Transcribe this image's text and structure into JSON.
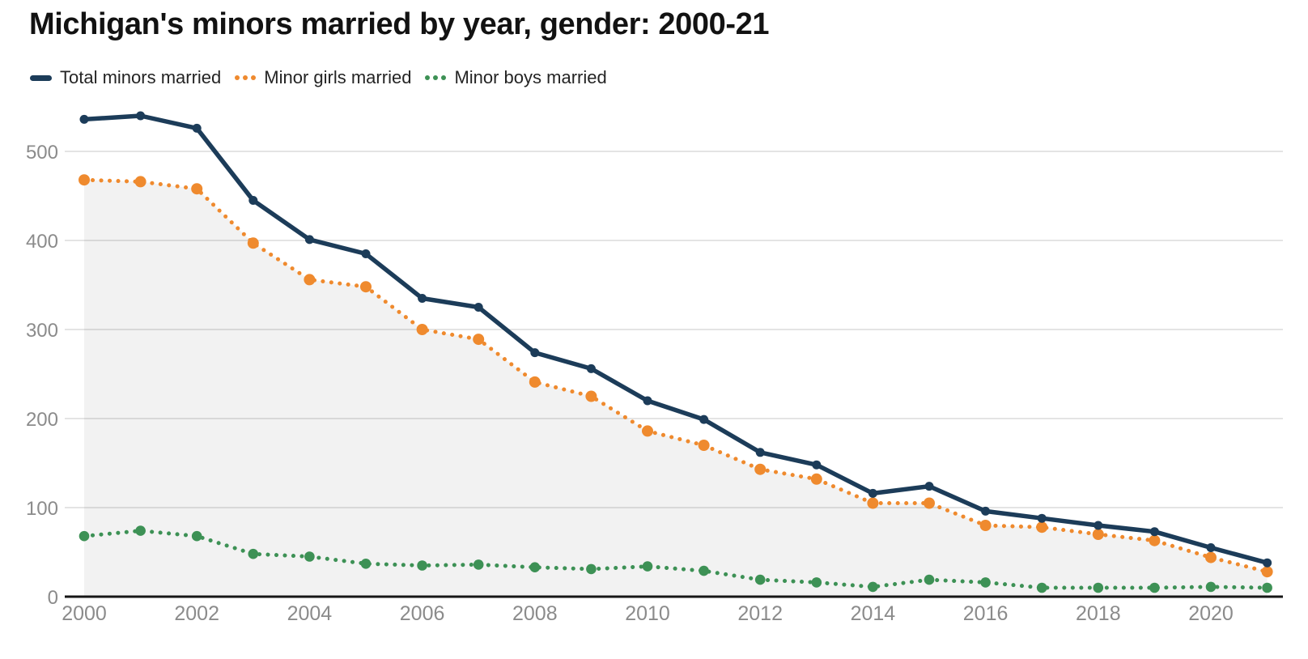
{
  "chart_data": {
    "type": "line",
    "title": "Michigan's minors married by year, gender: 2000-21",
    "x": [
      2000,
      2001,
      2002,
      2003,
      2004,
      2005,
      2006,
      2007,
      2008,
      2009,
      2010,
      2011,
      2012,
      2013,
      2014,
      2015,
      2016,
      2017,
      2018,
      2019,
      2020,
      2021
    ],
    "series": [
      {
        "name": "Total minors married",
        "style": "solid",
        "color": "#1c3c59",
        "values": [
          536,
          540,
          526,
          445,
          401,
          385,
          335,
          325,
          274,
          256,
          220,
          199,
          162,
          148,
          116,
          124,
          96,
          88,
          80,
          73,
          55,
          38
        ]
      },
      {
        "name": "Minor girls married",
        "style": "dotted",
        "color": "#ef8a2e",
        "area_fill": true,
        "values": [
          468,
          466,
          458,
          397,
          356,
          348,
          300,
          289,
          241,
          225,
          186,
          170,
          143,
          132,
          105,
          105,
          80,
          78,
          70,
          63,
          44,
          28
        ]
      },
      {
        "name": "Minor boys married",
        "style": "dotted",
        "color": "#3d9155",
        "values": [
          68,
          74,
          68,
          48,
          45,
          37,
          35,
          36,
          33,
          31,
          34,
          29,
          19,
          16,
          11,
          19,
          16,
          10,
          10,
          10,
          11,
          10
        ]
      }
    ],
    "xticks": [
      2000,
      2002,
      2004,
      2006,
      2008,
      2010,
      2012,
      2014,
      2016,
      2018,
      2020
    ],
    "yticks": [
      0,
      100,
      200,
      300,
      400,
      500
    ],
    "ylim": [
      0,
      560
    ],
    "xlabel": "",
    "ylabel": "",
    "grid": "horizontal",
    "legend_position": "top-left",
    "area_fill_color": "rgba(0,0,0,0.05)",
    "axis_color": "#161616",
    "gridline_color": "#e4e4e4",
    "tick_label_color": "#8b8b8b",
    "title_color": "#121212"
  }
}
